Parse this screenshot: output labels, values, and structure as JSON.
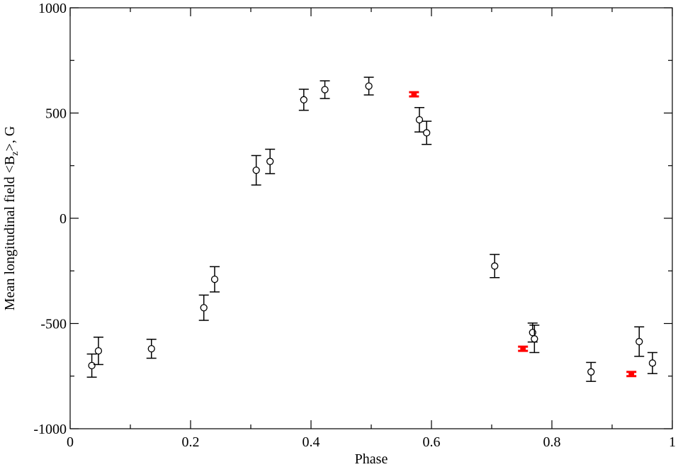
{
  "chart_data": {
    "type": "scatter",
    "title": "",
    "xlabel": "Phase",
    "ylabel": {
      "prefix": "Mean longitudinal field <B",
      "subscript": "z",
      "suffix": ">, G"
    },
    "xlim": [
      0,
      1
    ],
    "ylim": [
      -1000,
      1000
    ],
    "x_ticks": [
      0,
      0.2,
      0.4,
      0.6,
      0.8,
      1
    ],
    "x_tick_labels": [
      "0",
      "0.2",
      "0.4",
      "0.6",
      "0.8",
      "1"
    ],
    "y_ticks": [
      -1000,
      -500,
      0,
      500,
      1000
    ],
    "y_tick_labels": [
      "-1000",
      "-500",
      "0",
      "500",
      "1000"
    ],
    "grid": false,
    "colors": {
      "black": "#000000",
      "red": "#ff0000"
    },
    "series": [
      {
        "marker": "open-circle",
        "color": "#000000",
        "points": [
          {
            "x": 0.036,
            "y": -700,
            "err": 55
          },
          {
            "x": 0.047,
            "y": -630,
            "err": 65
          },
          {
            "x": 0.135,
            "y": -620,
            "err": 45
          },
          {
            "x": 0.222,
            "y": -425,
            "err": 60
          },
          {
            "x": 0.24,
            "y": -290,
            "err": 60
          },
          {
            "x": 0.309,
            "y": 228,
            "err": 70
          },
          {
            "x": 0.332,
            "y": 270,
            "err": 58
          },
          {
            "x": 0.388,
            "y": 563,
            "err": 50
          },
          {
            "x": 0.423,
            "y": 611,
            "err": 42
          },
          {
            "x": 0.496,
            "y": 628,
            "err": 42
          },
          {
            "x": 0.58,
            "y": 468,
            "err": 58
          },
          {
            "x": 0.592,
            "y": 406,
            "err": 55
          },
          {
            "x": 0.705,
            "y": -227,
            "err": 55
          },
          {
            "x": 0.768,
            "y": -543,
            "err": 45
          },
          {
            "x": 0.771,
            "y": -573,
            "err": 65
          },
          {
            "x": 0.865,
            "y": -730,
            "err": 45
          },
          {
            "x": 0.945,
            "y": -586,
            "err": 70
          },
          {
            "x": 0.967,
            "y": -688,
            "err": 50
          }
        ]
      },
      {
        "marker": "filled-circle",
        "color": "#ff0000",
        "points": [
          {
            "x": 0.571,
            "y": 589,
            "err": 10
          },
          {
            "x": 0.752,
            "y": -620,
            "err": 10
          },
          {
            "x": 0.932,
            "y": -740,
            "err": 10
          }
        ]
      }
    ]
  }
}
